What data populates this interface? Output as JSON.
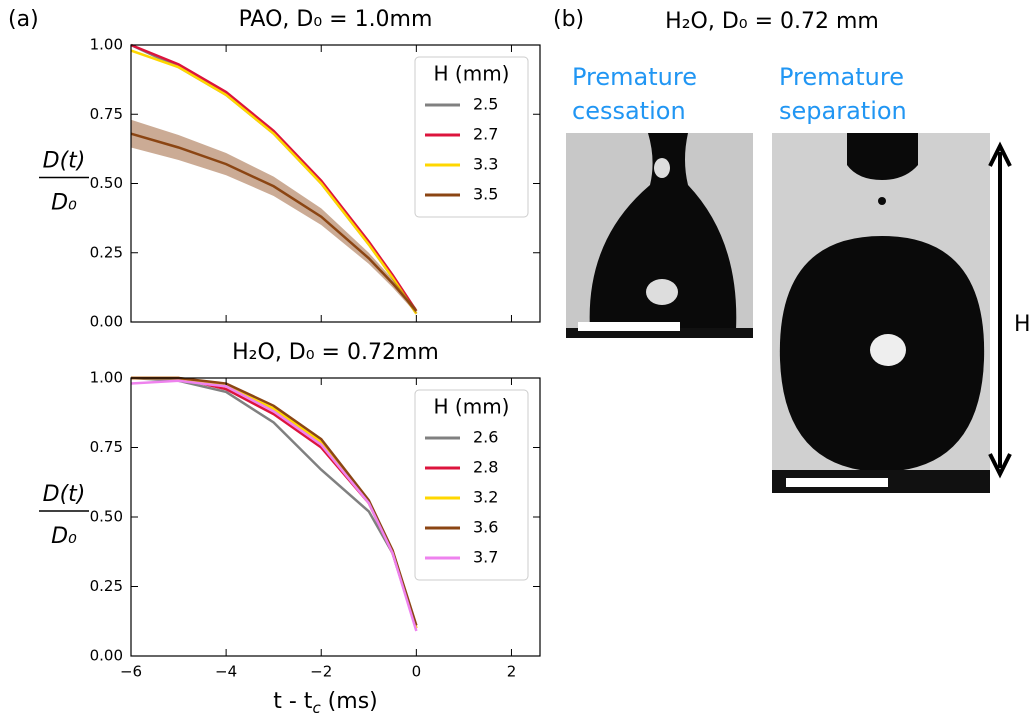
{
  "panel_labels": [
    "(a)",
    "(b)"
  ],
  "chart_data": [
    {
      "type": "line",
      "title": "PAO, D₀ = 1.0mm",
      "ylabel": [
        "D(t)",
        "D₀"
      ],
      "xlim": [
        -6,
        2.6
      ],
      "ylim": [
        0,
        1.0
      ],
      "xticks": [
        -6,
        -4,
        -2,
        0,
        2
      ],
      "show_xtick_labels": false,
      "yticks": [
        {
          "value": 0,
          "label": "0.00"
        },
        {
          "value": 0.25,
          "label": "0.25"
        },
        {
          "value": 0.5,
          "label": "0.50"
        },
        {
          "value": 0.75,
          "label": "0.75"
        },
        {
          "value": 1.0,
          "label": "1.00"
        }
      ],
      "legend_title": "H (mm)",
      "legend": "upper right",
      "x": [
        -6,
        -5,
        -4,
        -3,
        -2,
        -1,
        -0.5,
        0
      ],
      "series": [
        {
          "name": "2.5",
          "color": "#808080",
          "values": [
            1.0,
            0.92,
            0.82,
            0.68,
            0.5,
            0.28,
            0.16,
            0.03
          ]
        },
        {
          "name": "2.7",
          "color": "#dc143c",
          "values": [
            1.0,
            0.93,
            0.83,
            0.69,
            0.51,
            0.29,
            0.17,
            0.04
          ]
        },
        {
          "name": "3.3",
          "color": "#ffd700",
          "values": [
            0.98,
            0.92,
            0.82,
            0.68,
            0.5,
            0.28,
            0.16,
            0.03
          ]
        },
        {
          "name": "3.5",
          "color": "#8b4513",
          "values": [
            0.68,
            0.63,
            0.57,
            0.49,
            0.38,
            0.23,
            0.14,
            0.04
          ],
          "errors": [
            0.05,
            0.045,
            0.04,
            0.035,
            0.03,
            0.02,
            0.015,
            0.01
          ]
        }
      ]
    },
    {
      "type": "line",
      "title": "H₂O, D₀ = 0.72mm",
      "ylabel": [
        "D(t)",
        "D₀"
      ],
      "xlabel": [
        "t - t",
        "c",
        " (ms)"
      ],
      "xlim": [
        -6,
        2.6
      ],
      "ylim": [
        0,
        1.0
      ],
      "xticks": [
        {
          "value": -6,
          "label": "−6"
        },
        {
          "value": -4,
          "label": "−4"
        },
        {
          "value": -2,
          "label": "−2"
        },
        0,
        2
      ],
      "show_xtick_labels": true,
      "yticks": [
        {
          "value": 0,
          "label": "0.00"
        },
        {
          "value": 0.25,
          "label": "0.25"
        },
        {
          "value": 0.5,
          "label": "0.50"
        },
        {
          "value": 0.75,
          "label": "0.75"
        },
        {
          "value": 1.0,
          "label": "1.00"
        }
      ],
      "legend_title": "H (mm)",
      "legend": "upper right",
      "x": [
        -6,
        -5,
        -4,
        -3,
        -2,
        -1,
        -0.5,
        0
      ],
      "series": [
        {
          "name": "2.6",
          "color": "#808080",
          "values": [
            1.0,
            0.99,
            0.95,
            0.84,
            0.67,
            0.52,
            0.37,
            0.1
          ]
        },
        {
          "name": "2.8",
          "color": "#dc143c",
          "values": [
            1.0,
            1.0,
            0.96,
            0.87,
            0.75,
            0.55,
            0.37,
            0.1
          ]
        },
        {
          "name": "3.2",
          "color": "#ffd700",
          "values": [
            1.0,
            1.0,
            0.97,
            0.89,
            0.77,
            0.55,
            0.38,
            0.1
          ]
        },
        {
          "name": "3.6",
          "color": "#8b4513",
          "values": [
            1.0,
            1.0,
            0.98,
            0.9,
            0.78,
            0.56,
            0.38,
            0.11
          ]
        },
        {
          "name": "3.7",
          "color": "#ee82ee",
          "values": [
            0.98,
            0.99,
            0.97,
            0.88,
            0.76,
            0.55,
            0.37,
            0.09
          ]
        }
      ]
    }
  ],
  "panel_b": {
    "title": "H₂O, D₀ = 0.72 mm",
    "captions": [
      [
        "Premature",
        "cessation"
      ],
      [
        "Premature",
        "separation"
      ]
    ],
    "dimension_label": "H"
  }
}
